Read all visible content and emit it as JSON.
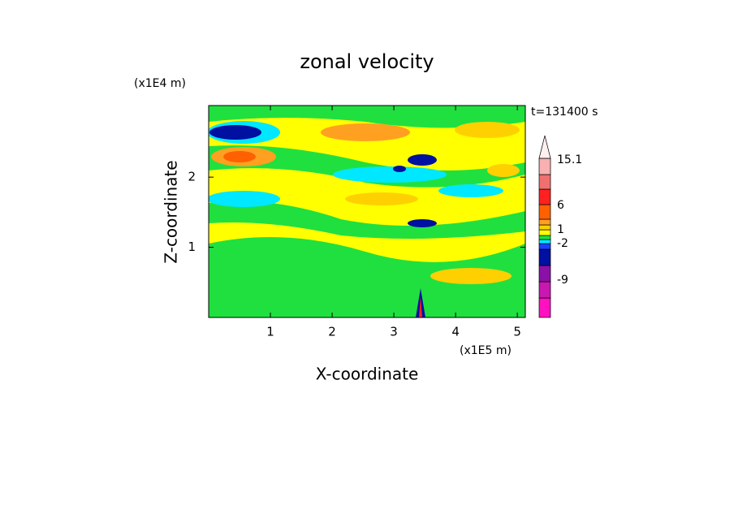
{
  "chart_data": {
    "type": "contour",
    "title": "zonal velocity",
    "x_label": "X-coordinate",
    "y_label": "Z-coordinate",
    "x_unit": "(x1E5 m)",
    "y_unit": "(x1E4 m)",
    "time_label": "t=131400 s",
    "xlim": [
      0,
      5.13
    ],
    "xticks": [
      1,
      2,
      3,
      4,
      5
    ],
    "ylim": [
      0,
      3.02
    ],
    "yticks": [
      1,
      2
    ],
    "colorbar": {
      "colors": [
        "#ff10c0",
        "#c818b0",
        "#8a10a8",
        "#0010a0",
        "#1840ff",
        "#00e8ff",
        "#20e040",
        "#ffff00",
        "#ffd000",
        "#ffa020",
        "#ff6000",
        "#ff2020",
        "#f07070",
        "#f8b0b0",
        "#fff0f0"
      ],
      "ticks": [
        15.1,
        6,
        1,
        -2,
        -9
      ]
    }
  }
}
